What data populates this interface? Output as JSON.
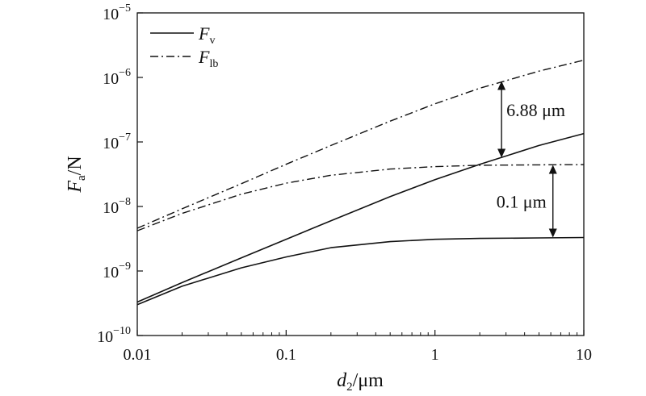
{
  "chart_data": {
    "type": "line",
    "xscale": "log",
    "yscale": "log",
    "xlim": [
      0.01,
      10
    ],
    "ylim": [
      1e-10,
      1e-05
    ],
    "xlabel": {
      "main": "d",
      "sub": "2",
      "unit": "/μm"
    },
    "ylabel": {
      "main": "F",
      "sub": "a",
      "unit": "/N"
    },
    "x_ticks": [
      {
        "value": 0.01,
        "label": "0.01"
      },
      {
        "value": 0.1,
        "label": "0.1"
      },
      {
        "value": 1,
        "label": "1"
      },
      {
        "value": 10,
        "label": "10"
      }
    ],
    "y_ticks": [
      {
        "value": 1e-10,
        "base": "10",
        "exp": "−10"
      },
      {
        "value": 1e-09,
        "base": "10",
        "exp": "−9"
      },
      {
        "value": 1e-08,
        "base": "10",
        "exp": "−8"
      },
      {
        "value": 1e-07,
        "base": "10",
        "exp": "−7"
      },
      {
        "value": 1e-06,
        "base": "10",
        "exp": "−6"
      },
      {
        "value": 1e-05,
        "base": "10",
        "exp": "−5"
      }
    ],
    "legend": {
      "position": "top-left",
      "entries": [
        {
          "main": "F",
          "sub": "v",
          "style": "solid"
        },
        {
          "main": "F",
          "sub": "lb",
          "style": "dashdot"
        }
      ]
    },
    "grid": false,
    "series": [
      {
        "style": "solid",
        "group": "6.88 μm",
        "points": [
          [
            0.01,
            3.3e-10
          ],
          [
            0.02,
            6.6e-10
          ],
          [
            0.05,
            1.6e-09
          ],
          [
            0.1,
            3.1e-09
          ],
          [
            0.2,
            6e-09
          ],
          [
            0.5,
            1.42e-08
          ],
          [
            1,
            2.6e-08
          ],
          [
            2,
            4.5e-08
          ],
          [
            5,
            8.8e-08
          ],
          [
            10,
            1.35e-07
          ]
        ]
      },
      {
        "style": "solid",
        "group": "0.1 μm",
        "points": [
          [
            0.01,
            3e-10
          ],
          [
            0.02,
            5.8e-10
          ],
          [
            0.05,
            1.12e-09
          ],
          [
            0.1,
            1.65e-09
          ],
          [
            0.2,
            2.3e-09
          ],
          [
            0.5,
            2.85e-09
          ],
          [
            1,
            3.1e-09
          ],
          [
            2,
            3.2e-09
          ],
          [
            5,
            3.25e-09
          ],
          [
            10,
            3.3e-09
          ]
        ]
      },
      {
        "style": "dashdot",
        "group": "6.88 μm",
        "points": [
          [
            0.01,
            4.6e-09
          ],
          [
            0.02,
            9.2e-09
          ],
          [
            0.05,
            2.25e-08
          ],
          [
            0.1,
            4.5e-08
          ],
          [
            0.2,
            8.8e-08
          ],
          [
            0.5,
            2.1e-07
          ],
          [
            1,
            3.9e-07
          ],
          [
            2,
            6.8e-07
          ],
          [
            5,
            1.25e-06
          ],
          [
            10,
            1.85e-06
          ]
        ]
      },
      {
        "style": "dashdot",
        "group": "0.1 μm",
        "points": [
          [
            0.01,
            4.2e-09
          ],
          [
            0.02,
            7.8e-09
          ],
          [
            0.05,
            1.55e-08
          ],
          [
            0.1,
            2.3e-08
          ],
          [
            0.2,
            3.05e-08
          ],
          [
            0.5,
            3.8e-08
          ],
          [
            1,
            4.15e-08
          ],
          [
            2,
            4.35e-08
          ],
          [
            5,
            4.42e-08
          ],
          [
            10,
            4.45e-08
          ]
        ]
      }
    ],
    "annotations": [
      {
        "text": "6.88 μm",
        "x": 2.8,
        "y_from": 8.8e-07,
        "y_to": 5.7e-08
      },
      {
        "text": "0.1 μm",
        "x": 6.2,
        "y_from": 4.4e-08,
        "y_to": 3.3e-09
      }
    ]
  }
}
